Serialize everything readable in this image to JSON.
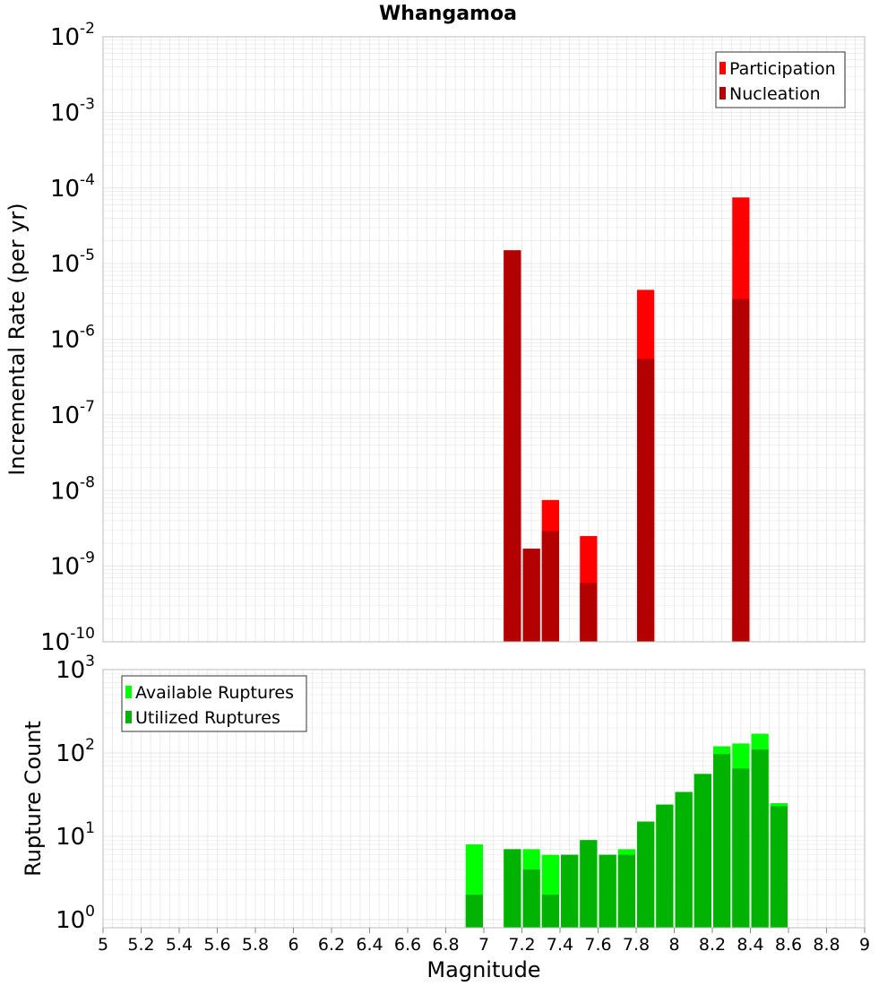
{
  "title": "Whangamoa",
  "colors": {
    "participation": "#ff0000",
    "nucleation": "#b30000",
    "available": "#00ff00",
    "utilized": "#00b300",
    "grid": "#e6e6e6",
    "frame": "#bbbbbb"
  },
  "chart_data": [
    {
      "type": "bar",
      "ylabel": "Incremental Rate (per yr)",
      "yscale": "log",
      "ylim": [
        1e-10,
        0.01
      ],
      "y_tick_exponents": [
        "-2",
        "-3",
        "-4",
        "-5",
        "-6",
        "-7",
        "-8",
        "-9",
        "-10"
      ],
      "legend_position": "top-right",
      "x": [
        7.15,
        7.25,
        7.35,
        7.55,
        7.85,
        8.35
      ],
      "series": [
        {
          "name": "Participation",
          "values": [
            1.5e-05,
            1.7e-09,
            7.5e-09,
            2.5e-09,
            4.5e-06,
            7.5e-05
          ]
        },
        {
          "name": "Nucleation",
          "values": [
            1.5e-05,
            1.7e-09,
            2.9e-09,
            6e-10,
            5.5e-07,
            3.4e-06
          ]
        }
      ]
    },
    {
      "type": "bar",
      "ylabel": "Rupture Count",
      "xlabel": "Magnitude",
      "yscale": "log",
      "ylim": [
        0.8,
        1000
      ],
      "y_tick_exponents": [
        "3",
        "2",
        "1",
        "0"
      ],
      "legend_position": "top-left",
      "xlim": [
        5,
        9
      ],
      "x_ticks": [
        "5",
        "5.2",
        "5.4",
        "5.6",
        "5.8",
        "6",
        "6.2",
        "6.4",
        "6.6",
        "6.8",
        "7",
        "7.2",
        "7.4",
        "7.6",
        "7.8",
        "8",
        "8.2",
        "8.4",
        "8.6",
        "8.8",
        "9"
      ],
      "x": [
        6.95,
        7.15,
        7.25,
        7.35,
        7.45,
        7.55,
        7.65,
        7.75,
        7.85,
        7.95,
        8.05,
        8.15,
        8.25,
        8.35,
        8.45,
        8.55
      ],
      "series": [
        {
          "name": "Available Ruptures",
          "values": [
            8,
            7,
            7,
            6,
            6,
            9,
            6,
            7,
            15,
            24,
            34,
            56,
            120,
            130,
            170,
            25
          ]
        },
        {
          "name": "Utilized Ruptures",
          "values": [
            2,
            7,
            4,
            2,
            6,
            9,
            6,
            6,
            15,
            24,
            34,
            56,
            97,
            65,
            110,
            23
          ]
        }
      ]
    }
  ]
}
